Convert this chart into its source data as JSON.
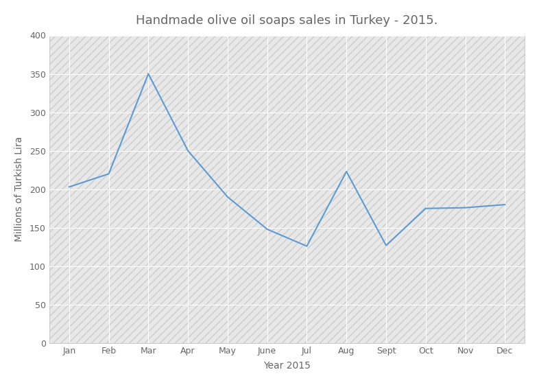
{
  "title": "Handmade olive oil soaps sales in Turkey - 2015.",
  "xlabel": "Year 2015",
  "ylabel": "Millions of Turkish Lira",
  "months": [
    "Jan",
    "Feb",
    "Mar",
    "Apr",
    "May",
    "June",
    "Jul",
    "Aug",
    "Sept",
    "Oct",
    "Nov",
    "Dec"
  ],
  "values": [
    203,
    220,
    350,
    250,
    190,
    148,
    126,
    223,
    127,
    175,
    176,
    180
  ],
  "line_color": "#5B9BD5",
  "line_width": 1.5,
  "ylim": [
    0,
    400
  ],
  "yticks": [
    0,
    50,
    100,
    150,
    200,
    250,
    300,
    350,
    400
  ],
  "background_color": "#FFFFFF",
  "plot_bg_color": "#E8E8E8",
  "grid_color": "#FFFFFF",
  "title_fontsize": 13,
  "label_fontsize": 10,
  "tick_fontsize": 9,
  "tick_color": "#666666",
  "label_color": "#666666",
  "title_color": "#666666"
}
